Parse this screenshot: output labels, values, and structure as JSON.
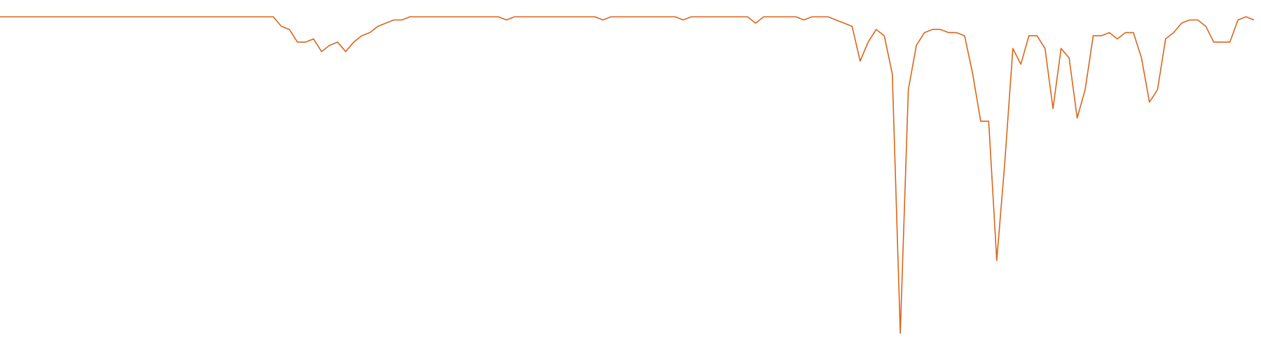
{
  "chart_data": {
    "type": "line",
    "color": "#d9661a",
    "values": [
      100,
      100,
      100,
      100,
      100,
      100,
      100,
      100,
      100,
      100,
      100,
      100,
      100,
      100,
      100,
      100,
      100,
      100,
      100,
      100,
      100,
      100,
      100,
      100,
      100,
      100,
      100,
      100,
      100,
      100,
      100,
      100,
      100,
      100,
      100,
      97,
      96,
      92,
      92,
      93,
      89,
      91,
      92,
      89,
      92,
      94,
      95,
      97,
      98,
      99,
      99,
      100,
      100,
      100,
      100,
      100,
      100,
      100,
      100,
      100,
      100,
      100,
      100,
      99,
      100,
      100,
      100,
      100,
      100,
      100,
      100,
      100,
      100,
      100,
      100,
      99,
      100,
      100,
      100,
      100,
      100,
      100,
      100,
      100,
      100,
      99,
      100,
      100,
      100,
      100,
      100,
      100,
      100,
      100,
      98,
      100,
      100,
      100,
      100,
      100,
      99,
      100,
      100,
      100,
      99,
      98,
      97,
      86,
      92,
      96,
      94,
      82,
      0,
      77,
      91,
      95,
      96,
      96,
      95,
      95,
      94,
      82,
      67,
      67,
      23,
      54,
      90,
      85,
      94,
      94,
      90,
      71,
      90,
      87,
      68,
      77,
      94,
      94,
      95,
      93,
      95,
      95,
      87,
      73,
      77,
      93,
      95,
      98,
      99,
      99,
      97,
      92,
      92,
      92,
      99,
      100,
      99
    ]
  }
}
